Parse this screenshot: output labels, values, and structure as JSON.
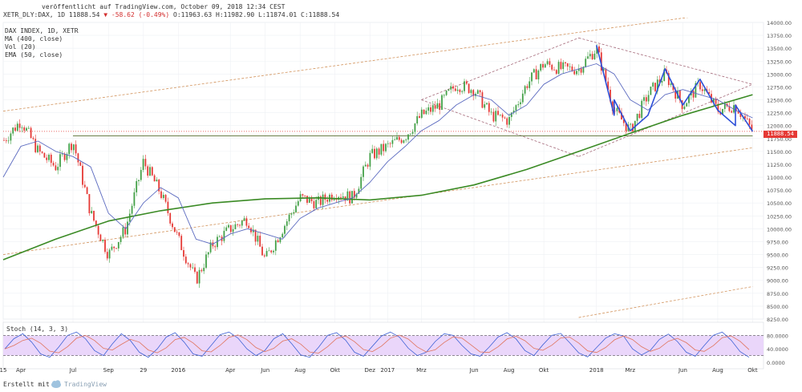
{
  "header": {
    "publish_line": "veröffentlicht auf TradingView.com, October 09, 2018 12:34 CEST",
    "symbol": "XETR_DLY:DAX, 1D",
    "last": "11888.54",
    "change_arrow": "▼",
    "change": "-58.62",
    "change_pct": "(-0.49%)",
    "open": "O:11963.63",
    "high": "H:11982.90",
    "low": "L:11874.01",
    "close": "C:11888.54"
  },
  "legend": {
    "main": "DAX INDEX, 1D, XETR",
    "ma": "MA (400, close)",
    "vol": "Vol (20)",
    "ema": "EMA (50, close)"
  },
  "stoch": {
    "label": "Stoch (14, 3, 3)",
    "ticks": [
      "80.0000",
      "40.0000",
      "0.0000"
    ]
  },
  "footer": {
    "credit": "Erstellt mit",
    "brand": "TradingView"
  },
  "last_price_tag": "11888.54",
  "colors": {
    "candle_up": "#43a047",
    "candle_down": "#e53935",
    "ma400": "#3a8a24",
    "ema50": "#5c6bc0",
    "trend_dashed": "#d2935c",
    "channel_dashed": "#a56a7a",
    "zigzag": "#2d4fd8",
    "stoch_fill": "#ead6fa",
    "price_line": "#e53935"
  },
  "chart_data": {
    "type": "candlestick",
    "yaxis": {
      "min": 8250,
      "max": 14000,
      "ticks": [
        "14000.00",
        "13750.00",
        "13500.00",
        "13250.00",
        "13000.00",
        "12750.00",
        "12500.00",
        "12250.00",
        "12000.00",
        "11750.00",
        "11500.00",
        "11250.00",
        "11000.00",
        "10750.00",
        "10500.00",
        "10250.00",
        "10000.00",
        "9750.00",
        "9500.00",
        "9250.00",
        "9000.00",
        "8750.00",
        "8500.00",
        "8250.00"
      ]
    },
    "xaxis": {
      "ticks": [
        {
          "label": "15",
          "date": "2015-03"
        },
        {
          "label": "Apr",
          "date": "2015-04"
        },
        {
          "label": "Jul",
          "date": "2015-07"
        },
        {
          "label": "Sep",
          "date": "2015-09"
        },
        {
          "label": "29",
          "date": "2015-11"
        },
        {
          "label": "2016",
          "date": "2016-01"
        },
        {
          "label": "Apr",
          "date": "2016-04"
        },
        {
          "label": "Jun",
          "date": "2016-06"
        },
        {
          "label": "Aug",
          "date": "2016-08"
        },
        {
          "label": "Okt",
          "date": "2016-10"
        },
        {
          "label": "Dez",
          "date": "2016-12"
        },
        {
          "label": "2017",
          "date": "2017-01"
        },
        {
          "label": "Mrz",
          "date": "2017-03"
        },
        {
          "label": "Jun",
          "date": "2017-06"
        },
        {
          "label": "Aug",
          "date": "2017-08"
        },
        {
          "label": "Okt",
          "date": "2017-10"
        },
        {
          "label": "2018",
          "date": "2018-01"
        },
        {
          "label": "Mrz",
          "date": "2018-03"
        },
        {
          "label": "Jun",
          "date": "2018-06"
        },
        {
          "label": "Aug",
          "date": "2018-08"
        },
        {
          "label": "Okt",
          "date": "2018-10"
        }
      ]
    },
    "price_path": [
      [
        "2015-03",
        11700
      ],
      [
        "2015-04",
        12100
      ],
      [
        "2015-05",
        11500
      ],
      [
        "2015-06",
        11200
      ],
      [
        "2015-07",
        11700
      ],
      [
        "2015-08",
        10300
      ],
      [
        "2015-09",
        9500
      ],
      [
        "2015-10",
        10000
      ],
      [
        "2015-11",
        11300
      ],
      [
        "2015-12",
        10700
      ],
      [
        "2016-01",
        9800
      ],
      [
        "2016-02",
        9000
      ],
      [
        "2016-03",
        9700
      ],
      [
        "2016-04",
        10000
      ],
      [
        "2016-05",
        10200
      ],
      [
        "2016-06",
        9400
      ],
      [
        "2016-07",
        10000
      ],
      [
        "2016-08",
        10600
      ],
      [
        "2016-09",
        10500
      ],
      [
        "2016-10",
        10700
      ],
      [
        "2016-11",
        10600
      ],
      [
        "2016-12",
        11400
      ],
      [
        "2017-01",
        11600
      ],
      [
        "2017-02",
        11800
      ],
      [
        "2017-03",
        12200
      ],
      [
        "2017-04",
        12400
      ],
      [
        "2017-05",
        12800
      ],
      [
        "2017-06",
        12700
      ],
      [
        "2017-07",
        12200
      ],
      [
        "2017-08",
        12100
      ],
      [
        "2017-09",
        12800
      ],
      [
        "2017-10",
        13200
      ],
      [
        "2017-11",
        13100
      ],
      [
        "2017-12",
        13100
      ],
      [
        "2018-01",
        13500
      ],
      [
        "2018-02",
        12300
      ],
      [
        "2018-03",
        11900
      ],
      [
        "2018-04",
        12600
      ],
      [
        "2018-05",
        13000
      ],
      [
        "2018-06",
        12400
      ],
      [
        "2018-07",
        12800
      ],
      [
        "2018-08",
        12300
      ],
      [
        "2018-09",
        12400
      ],
      [
        "2018-10",
        11888
      ]
    ],
    "ema50": [
      [
        "2015-03",
        11000
      ],
      [
        "2015-04",
        11600
      ],
      [
        "2015-05",
        11700
      ],
      [
        "2015-06",
        11500
      ],
      [
        "2015-07",
        11400
      ],
      [
        "2015-08",
        11200
      ],
      [
        "2015-09",
        10300
      ],
      [
        "2015-10",
        10000
      ],
      [
        "2015-11",
        10500
      ],
      [
        "2015-12",
        10800
      ],
      [
        "2016-01",
        10600
      ],
      [
        "2016-02",
        9800
      ],
      [
        "2016-03",
        9700
      ],
      [
        "2016-04",
        9900
      ],
      [
        "2016-05",
        10000
      ],
      [
        "2016-06",
        9900
      ],
      [
        "2016-07",
        9800
      ],
      [
        "2016-08",
        10200
      ],
      [
        "2016-09",
        10400
      ],
      [
        "2016-10",
        10500
      ],
      [
        "2016-11",
        10600
      ],
      [
        "2016-12",
        10900
      ],
      [
        "2017-01",
        11300
      ],
      [
        "2017-02",
        11600
      ],
      [
        "2017-03",
        11900
      ],
      [
        "2017-04",
        12100
      ],
      [
        "2017-05",
        12400
      ],
      [
        "2017-06",
        12600
      ],
      [
        "2017-07",
        12500
      ],
      [
        "2017-08",
        12200
      ],
      [
        "2017-09",
        12400
      ],
      [
        "2017-10",
        12800
      ],
      [
        "2017-11",
        13000
      ],
      [
        "2017-12",
        13100
      ],
      [
        "2018-01",
        13200
      ],
      [
        "2018-02",
        13000
      ],
      [
        "2018-03",
        12500
      ],
      [
        "2018-04",
        12300
      ],
      [
        "2018-05",
        12600
      ],
      [
        "2018-06",
        12700
      ],
      [
        "2018-07",
        12600
      ],
      [
        "2018-08",
        12500
      ],
      [
        "2018-09",
        12300
      ],
      [
        "2018-10",
        12150
      ]
    ],
    "ma400": [
      [
        "2015-03",
        9400
      ],
      [
        "2015-06",
        9800
      ],
      [
        "2015-09",
        10150
      ],
      [
        "2015-12",
        10350
      ],
      [
        "2016-03",
        10500
      ],
      [
        "2016-06",
        10580
      ],
      [
        "2016-09",
        10600
      ],
      [
        "2016-12",
        10560
      ],
      [
        "2017-03",
        10650
      ],
      [
        "2017-06",
        10850
      ],
      [
        "2017-09",
        11150
      ],
      [
        "2017-12",
        11500
      ],
      [
        "2018-03",
        11850
      ],
      [
        "2018-06",
        12200
      ],
      [
        "2018-10",
        12600
      ]
    ],
    "zigzag": [
      [
        "2018-01",
        13560
      ],
      [
        "2018-02",
        12200
      ],
      [
        "2018-02",
        12500
      ],
      [
        "2018-03",
        11900
      ],
      [
        "2018-04",
        12200
      ],
      [
        "2018-05",
        13100
      ],
      [
        "2018-06",
        12400
      ],
      [
        "2018-07",
        12900
      ],
      [
        "2018-08",
        12300
      ],
      [
        "2018-09",
        12000
      ],
      [
        "2018-09",
        12400
      ],
      [
        "2018-10",
        11888
      ]
    ],
    "stoch": [
      40,
      70,
      85,
      60,
      25,
      15,
      45,
      80,
      90,
      70,
      35,
      20,
      55,
      85,
      65,
      30,
      15,
      40,
      75,
      88,
      60,
      25,
      18,
      50,
      82,
      90,
      72,
      40,
      20,
      35,
      70,
      85,
      55,
      22,
      15,
      45,
      80,
      88,
      66,
      30,
      18,
      48,
      78,
      90,
      75,
      42,
      20,
      30,
      62,
      85,
      80,
      50,
      25,
      18,
      45,
      75,
      88,
      70,
      35,
      20,
      52,
      80,
      86,
      58,
      28,
      16,
      44,
      72,
      85,
      78,
      40,
      22,
      36,
      68,
      84,
      62,
      30,
      18,
      50,
      80,
      90,
      66,
      32,
      15
    ],
    "stoch_levels": {
      "upper": 80,
      "lower": 20
    },
    "support_level": 11800,
    "last_price": 11888.54
  }
}
